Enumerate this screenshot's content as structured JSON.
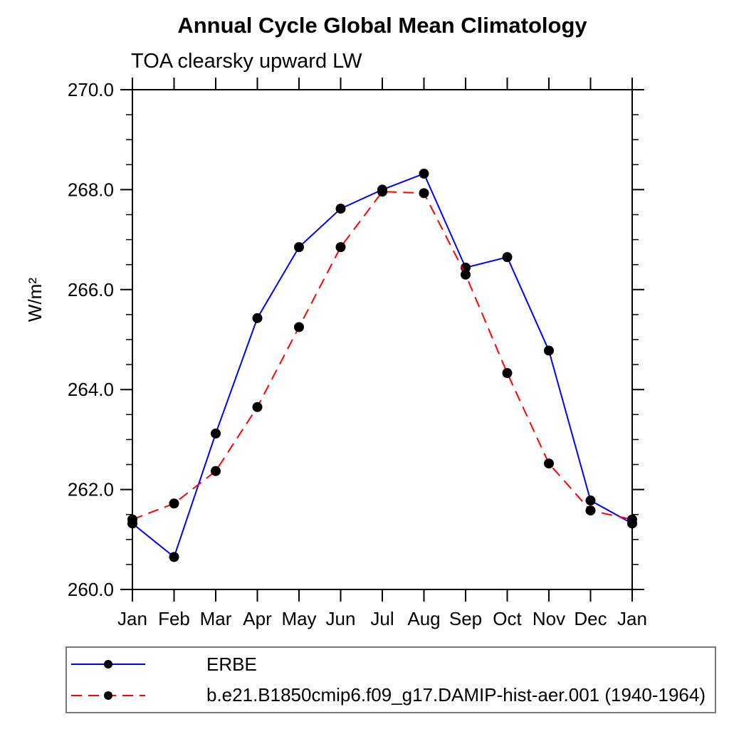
{
  "header": {
    "title": "Annual Cycle Global Mean Climatology",
    "subtitle": "TOA clearsky upward LW"
  },
  "chart_data": {
    "type": "line",
    "title": "Annual Cycle Global Mean Climatology",
    "subtitle": "TOA clearsky upward LW",
    "ylabel": "W/m²",
    "categories": [
      "Jan",
      "Feb",
      "Mar",
      "Apr",
      "May",
      "Jun",
      "Jul",
      "Aug",
      "Sep",
      "Oct",
      "Nov",
      "Dec",
      "Jan"
    ],
    "ylim": [
      260.0,
      270.0
    ],
    "y_ticks": [
      260.0,
      262.0,
      264.0,
      266.0,
      268.0,
      270.0
    ],
    "y_tick_labels": [
      "260.0",
      "262.0",
      "264.0",
      "266.0",
      "268.0",
      "270.0"
    ],
    "minor_tick_interval": 0.5,
    "grid": false,
    "legend_position": "bottom-left",
    "marker_color": "#000000",
    "series": [
      {
        "name": "ERBE",
        "color": "#0000ff",
        "style": "solid",
        "marker": "filled-circle",
        "values": [
          261.32,
          260.65,
          263.12,
          265.43,
          266.85,
          267.62,
          268.0,
          268.32,
          266.44,
          266.65,
          264.78,
          261.78,
          261.32
        ]
      },
      {
        "name": "b.e21.B1850cmip6.f09_g17.DAMIP-hist-aer.001 (1940-1964)",
        "color": "#ff0000",
        "style": "dashed",
        "marker": "filled-circle",
        "values": [
          261.4,
          261.72,
          262.37,
          263.65,
          265.25,
          266.85,
          267.96,
          267.93,
          266.3,
          264.33,
          262.52,
          261.58,
          261.4
        ]
      }
    ]
  }
}
